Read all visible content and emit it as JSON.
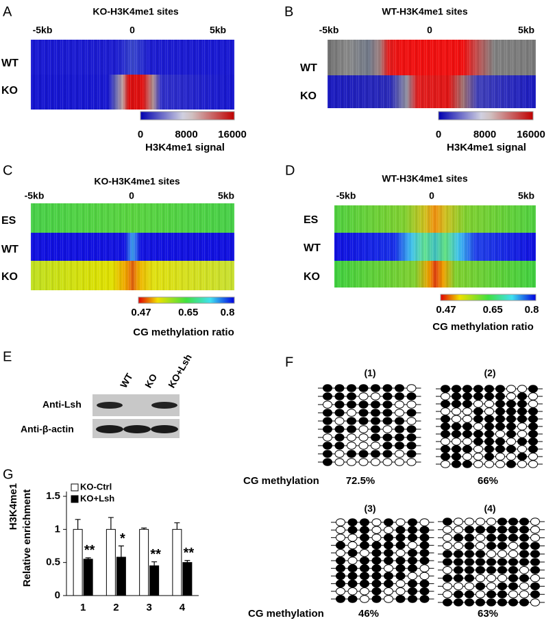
{
  "panels": {
    "A": {
      "letter": "A",
      "title": "KO-H3K4me1 sites",
      "x_labels": [
        "-5kb",
        "0",
        "5kb"
      ],
      "rows": [
        "WT",
        "KO"
      ],
      "colorbar": {
        "ticks": [
          0,
          8000,
          16000
        ],
        "label": "H3K4me1 signal"
      }
    },
    "B": {
      "letter": "B",
      "title": "WT-H3K4me1 sites",
      "x_labels": [
        "-5kb",
        "0",
        "5kb"
      ],
      "rows": [
        "WT",
        "KO"
      ],
      "colorbar": {
        "ticks": [
          0,
          8000,
          16000
        ],
        "label": "H3K4me1 signal"
      }
    },
    "C": {
      "letter": "C",
      "title": "KO-H3K4me1 sites",
      "x_labels": [
        "-5kb",
        "0",
        "5kb"
      ],
      "rows": [
        "ES",
        "WT",
        "KO"
      ],
      "colorbar": {
        "ticks": [
          0.47,
          0.65,
          0.8
        ],
        "label": "CG methylation ratio"
      }
    },
    "D": {
      "letter": "D",
      "title": "WT-H3K4me1 sites",
      "x_labels": [
        "-5kb",
        "0",
        "5kb"
      ],
      "rows": [
        "ES",
        "WT",
        "KO"
      ],
      "colorbar": {
        "ticks": [
          0.47,
          0.65,
          0.8
        ],
        "label": "CG methylation ratio"
      }
    },
    "E": {
      "letter": "E",
      "lanes": [
        "WT",
        "KO",
        "KO+Lsh"
      ],
      "rows": [
        "Anti-Lsh",
        "Anti-β-actin"
      ]
    },
    "F": {
      "letter": "F",
      "methylation_label": "CG methylation",
      "samples": [
        {
          "label": "(1)",
          "methylation": "72.5%"
        },
        {
          "label": "(2)",
          "methylation": "66%"
        },
        {
          "label": "(3)",
          "methylation": "46%"
        },
        {
          "label": "(4)",
          "methylation": "63%"
        }
      ]
    }
  },
  "chart_data": {
    "type": "bar",
    "letter": "G",
    "ylabel": [
      "H3K4me1",
      "Relative enrichment"
    ],
    "categories": [
      "1",
      "2",
      "3",
      "4"
    ],
    "series": [
      {
        "name": "KO-Ctrl",
        "color": "#ffffff",
        "values": [
          1,
          1,
          1,
          1
        ],
        "errors": [
          0.15,
          0.18,
          0.02,
          0.1
        ]
      },
      {
        "name": "KO+Lsh",
        "color": "#000000",
        "values": [
          0.55,
          0.58,
          0.45,
          0.5
        ],
        "errors": [
          0.02,
          0.17,
          0.06,
          0.03
        ],
        "annotations": [
          "**",
          "*",
          "**",
          "**"
        ]
      }
    ],
    "ylim": [
      0,
      1.5
    ],
    "yticks": [
      0,
      0.5,
      1,
      1.5
    ]
  }
}
